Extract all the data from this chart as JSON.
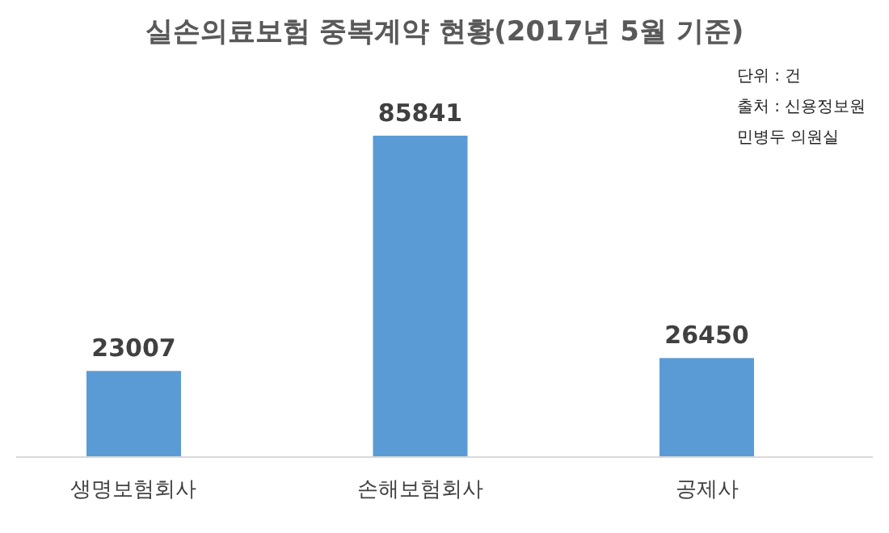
{
  "chart_data": {
    "type": "bar",
    "title": "실손의료보험 중복계약 현황(2017년 5월 기준)",
    "categories": [
      "생명보험회사",
      "손해보험회사",
      "공제사"
    ],
    "values": [
      23007,
      85841,
      26450
    ],
    "color": "#5b9bd5",
    "data_labels": true,
    "annotations": [
      "단위 : 건",
      "출처 : 신용정보원",
      "민병두 의원실"
    ]
  }
}
